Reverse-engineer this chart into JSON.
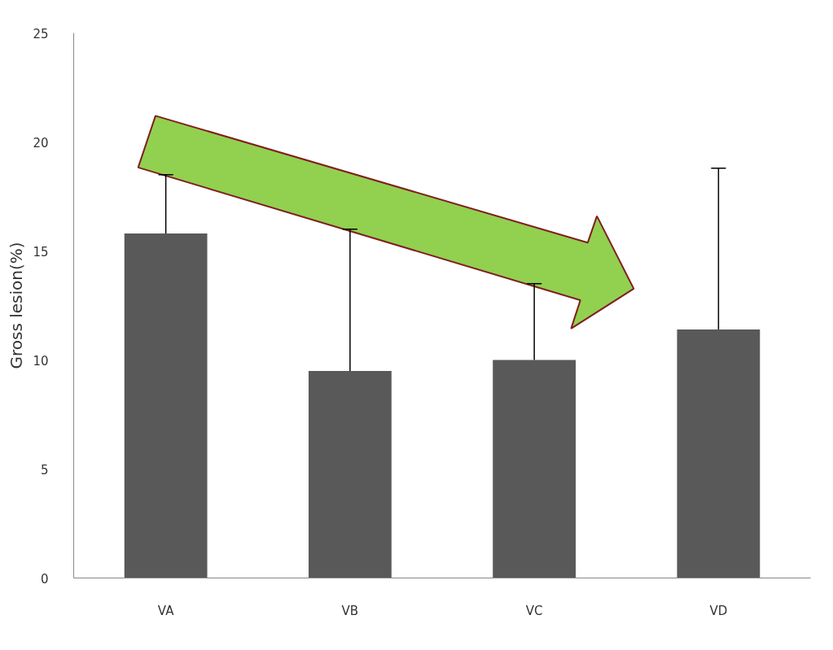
{
  "chart_data": {
    "type": "bar",
    "ylabel": "Gross lesion(%)",
    "categories": [
      "VA",
      "VB",
      "VC",
      "VD"
    ],
    "values": [
      15.8,
      9.5,
      10.0,
      11.4
    ],
    "errors": [
      [
        15.8,
        18.5
      ],
      [
        9.5,
        16.0
      ],
      [
        10.0,
        13.5
      ],
      [
        11.4,
        18.8
      ]
    ],
    "color": "#595959",
    "ylim": [
      0,
      25
    ],
    "yticks": [
      0,
      5,
      10,
      15,
      20,
      25
    ],
    "grid": false
  }
}
